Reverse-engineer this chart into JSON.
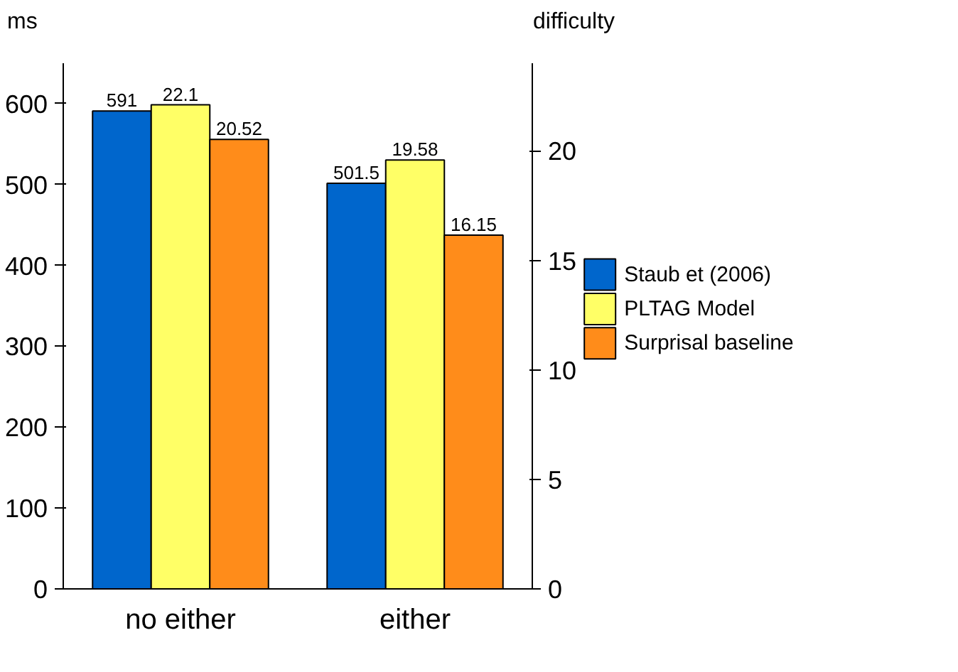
{
  "chart_data": {
    "type": "bar",
    "ylabel": "ms",
    "y2label": "difficulty",
    "categories": [
      "no either",
      "either"
    ],
    "series": [
      {
        "name": "Staub et (2006)",
        "color": "#0066cc",
        "values": [
          591,
          501.5
        ]
      },
      {
        "name": "PLTAG Model",
        "color": "#ffff66",
        "values": [
          22.1,
          19.58
        ],
        "axis": "y2"
      },
      {
        "name": "Surprisal baseline",
        "color": "#ff8c1a",
        "values": [
          20.52,
          16.15
        ],
        "axis": "y2"
      }
    ],
    "ylim": [
      0,
      650
    ],
    "yticks": [
      0,
      100,
      200,
      300,
      400,
      500,
      600
    ],
    "y2lim": [
      0,
      24
    ],
    "y2ticks": [
      0,
      5,
      10,
      15,
      20
    ],
    "grid": false,
    "legend": "right",
    "data_labels": true
  }
}
